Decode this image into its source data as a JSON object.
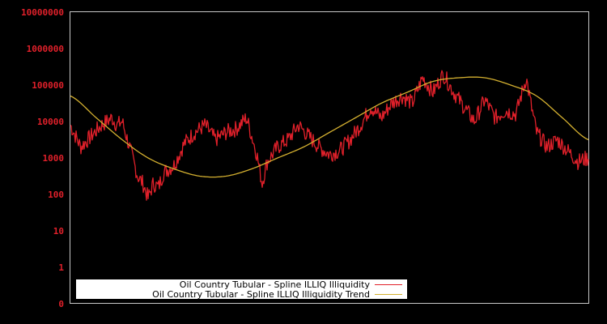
{
  "chart_data": {
    "type": "line",
    "title": "",
    "xlabel": "",
    "ylabel": "",
    "yscale": "log",
    "ylim": [
      0,
      10000000
    ],
    "y_ticks": [
      "10000000",
      "1000000",
      "100000",
      "10000",
      "1000",
      "100",
      "10",
      "1",
      "0"
    ],
    "x_ticks": [],
    "grid": false,
    "legend_position": "lower-left inside",
    "series": [
      {
        "name": "Oil Country Tubular - Spline ILLIQ Illiquidity",
        "color": "#e0202a",
        "approx_points_frac_logvalue": [
          [
            0.0,
            4.9
          ],
          [
            0.02,
            4.3
          ],
          [
            0.04,
            4.6
          ],
          [
            0.06,
            4.9
          ],
          [
            0.08,
            5.1
          ],
          [
            0.09,
            4.9
          ],
          [
            0.1,
            5.0
          ],
          [
            0.12,
            4.0
          ],
          [
            0.13,
            3.5
          ],
          [
            0.14,
            3.3
          ],
          [
            0.15,
            2.9
          ],
          [
            0.16,
            3.3
          ],
          [
            0.17,
            3.2
          ],
          [
            0.18,
            3.6
          ],
          [
            0.2,
            3.8
          ],
          [
            0.22,
            4.4
          ],
          [
            0.24,
            4.7
          ],
          [
            0.26,
            4.9
          ],
          [
            0.28,
            4.5
          ],
          [
            0.3,
            4.7
          ],
          [
            0.32,
            4.8
          ],
          [
            0.34,
            5.1
          ],
          [
            0.35,
            4.6
          ],
          [
            0.36,
            4.1
          ],
          [
            0.37,
            3.3
          ],
          [
            0.38,
            3.9
          ],
          [
            0.4,
            4.3
          ],
          [
            0.42,
            4.5
          ],
          [
            0.44,
            4.9
          ],
          [
            0.46,
            4.6
          ],
          [
            0.48,
            4.3
          ],
          [
            0.5,
            4.1
          ],
          [
            0.52,
            4.2
          ],
          [
            0.54,
            4.5
          ],
          [
            0.56,
            4.9
          ],
          [
            0.58,
            5.4
          ],
          [
            0.6,
            5.1
          ],
          [
            0.62,
            5.5
          ],
          [
            0.64,
            5.7
          ],
          [
            0.66,
            5.5
          ],
          [
            0.68,
            6.2
          ],
          [
            0.7,
            5.8
          ],
          [
            0.72,
            6.3
          ],
          [
            0.74,
            5.8
          ],
          [
            0.76,
            5.4
          ],
          [
            0.78,
            5.0
          ],
          [
            0.8,
            5.6
          ],
          [
            0.82,
            5.1
          ],
          [
            0.84,
            5.3
          ],
          [
            0.86,
            5.2
          ],
          [
            0.88,
            6.2
          ],
          [
            0.89,
            5.4
          ],
          [
            0.9,
            4.7
          ],
          [
            0.92,
            4.3
          ],
          [
            0.94,
            4.5
          ],
          [
            0.96,
            4.2
          ],
          [
            0.98,
            3.9
          ],
          [
            1.0,
            4.0
          ]
        ]
      },
      {
        "name": "Oil Country Tubular - Spline ILLIQ Illiquidity Trend",
        "color": "#d4b030",
        "approx_points_frac_logvalue": [
          [
            0.0,
            5.7
          ],
          [
            0.05,
            5.1
          ],
          [
            0.1,
            4.5
          ],
          [
            0.15,
            4.0
          ],
          [
            0.2,
            3.7
          ],
          [
            0.25,
            3.5
          ],
          [
            0.3,
            3.5
          ],
          [
            0.35,
            3.7
          ],
          [
            0.4,
            4.0
          ],
          [
            0.45,
            4.3
          ],
          [
            0.5,
            4.7
          ],
          [
            0.55,
            5.1
          ],
          [
            0.6,
            5.5
          ],
          [
            0.65,
            5.8
          ],
          [
            0.7,
            6.1
          ],
          [
            0.75,
            6.2
          ],
          [
            0.8,
            6.2
          ],
          [
            0.85,
            6.0
          ],
          [
            0.9,
            5.7
          ],
          [
            0.95,
            5.1
          ],
          [
            1.0,
            4.5
          ]
        ]
      }
    ]
  },
  "legend": {
    "items": [
      {
        "label": "Oil Country Tubular - Spline ILLIQ Illiquidity",
        "color": "#e0202a"
      },
      {
        "label": "Oil Country Tubular - Spline ILLIQ Illiquidity Trend",
        "color": "#d4b030"
      }
    ]
  },
  "axis": {
    "y_labels": [
      "10000000",
      "1000000",
      "100000",
      "10000",
      "1000",
      "100",
      "10",
      "1",
      "0"
    ]
  }
}
